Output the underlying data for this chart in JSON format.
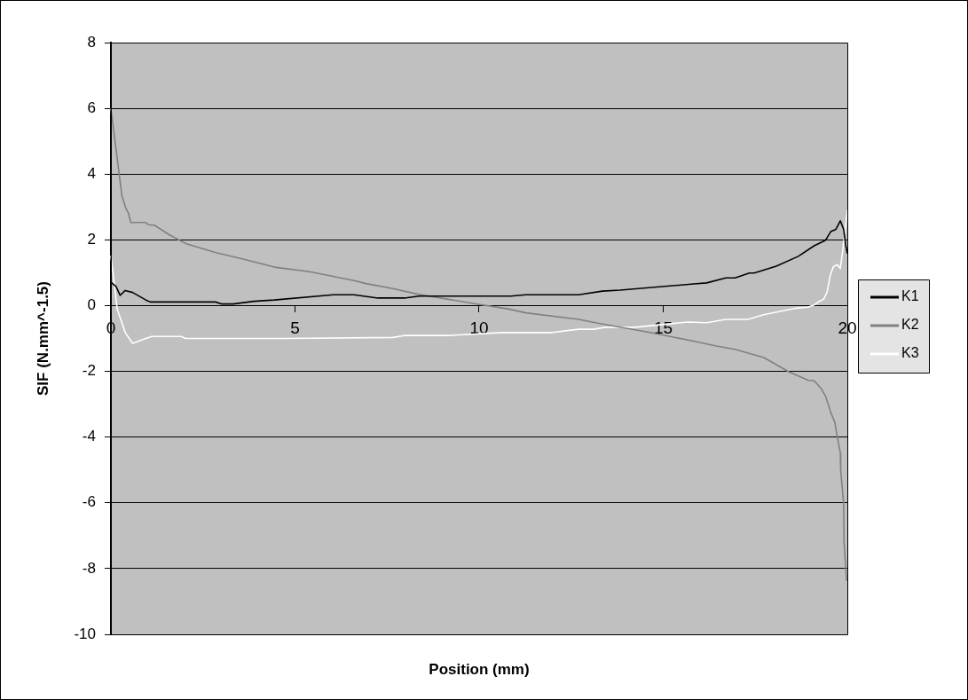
{
  "chart_data": {
    "type": "line",
    "xlabel": "Position (mm)",
    "ylabel": "SIF (N.mm^-1.5)",
    "xlim": [
      0,
      20
    ],
    "xticks": [
      0,
      5,
      10,
      15,
      20
    ],
    "ylim": [
      -10,
      8
    ],
    "yticks": [
      -10,
      -8,
      -6,
      -4,
      -2,
      0,
      2,
      4,
      6,
      8
    ],
    "grid": "y",
    "legend": "right",
    "marker": "none",
    "line_style": "solid",
    "series": [
      {
        "name": "K1",
        "color": "#000000",
        "x": [
          0,
          0.14,
          0.25,
          0.39,
          0.59,
          0.95,
          1.07,
          2.84,
          3.0,
          3.32,
          3.88,
          4.44,
          6.04,
          6.6,
          7.25,
          7.97,
          8.37,
          10.86,
          11.26,
          12.7,
          13.35,
          13.83,
          15.83,
          16.18,
          16.7,
          16.95,
          17.34,
          17.47,
          18.07,
          18.67,
          19.1,
          19.41,
          19.55,
          19.69,
          19.81,
          19.9,
          19.95,
          20
        ],
        "values": [
          0.71,
          0.58,
          0.31,
          0.46,
          0.4,
          0.17,
          0.11,
          0.11,
          0.05,
          0.05,
          0.13,
          0.17,
          0.33,
          0.33,
          0.23,
          0.23,
          0.29,
          0.29,
          0.33,
          0.33,
          0.44,
          0.47,
          0.66,
          0.69,
          0.84,
          0.84,
          0.99,
          0.99,
          1.2,
          1.5,
          1.82,
          1.99,
          2.25,
          2.32,
          2.58,
          2.32,
          1.87,
          1.58
        ]
      },
      {
        "name": "K2",
        "color": "#808080",
        "x": [
          0,
          0.3,
          0.4,
          0.48,
          0.54,
          0.94,
          1.02,
          1.19,
          1.59,
          2.03,
          2.83,
          3.64,
          4.44,
          5.4,
          6.6,
          6.93,
          7.65,
          8.37,
          9.98,
          10.78,
          11.27,
          12.71,
          13.19,
          14.64,
          15.83,
          16.44,
          16.95,
          17.73,
          18.42,
          18.93,
          19.1,
          19.28,
          19.41,
          19.55,
          19.66,
          19.71,
          19.81,
          19.82,
          19.9,
          19.91,
          19.98
        ],
        "values": [
          6.0,
          3.34,
          2.98,
          2.8,
          2.53,
          2.53,
          2.46,
          2.44,
          2.15,
          1.89,
          1.62,
          1.4,
          1.17,
          1.03,
          0.76,
          0.67,
          0.52,
          0.34,
          0.04,
          -0.1,
          -0.22,
          -0.42,
          -0.53,
          -0.82,
          -1.08,
          -1.23,
          -1.33,
          -1.58,
          -2.02,
          -2.27,
          -2.29,
          -2.51,
          -2.76,
          -3.25,
          -3.55,
          -3.89,
          -4.48,
          -5.02,
          -6.01,
          -7.19,
          -8.37
        ]
      },
      {
        "name": "K3",
        "color": "#ffffff",
        "x": [
          0,
          0.1,
          0.17,
          0.39,
          0.59,
          0.95,
          1.11,
          1.91,
          2.03,
          4.44,
          4.76,
          7.65,
          7.97,
          9.17,
          10.62,
          11.98,
          12.7,
          13.1,
          13.43,
          14.23,
          15.67,
          16.18,
          16.7,
          17.3,
          17.73,
          18.59,
          18.93,
          19.1,
          19.23,
          19.36,
          19.45,
          19.54,
          19.62,
          19.72,
          19.81,
          19.88,
          20
        ],
        "values": [
          1.52,
          0.62,
          -0.1,
          -0.82,
          -1.15,
          -1.0,
          -0.94,
          -0.94,
          -1.0,
          -1.0,
          -1.0,
          -0.97,
          -0.91,
          -0.91,
          -0.82,
          -0.82,
          -0.72,
          -0.72,
          -0.66,
          -0.66,
          -0.5,
          -0.52,
          -0.42,
          -0.42,
          -0.28,
          -0.08,
          -0.05,
          0.02,
          0.12,
          0.2,
          0.41,
          0.94,
          1.18,
          1.25,
          1.13,
          1.72,
          2.91
        ]
      }
    ]
  }
}
